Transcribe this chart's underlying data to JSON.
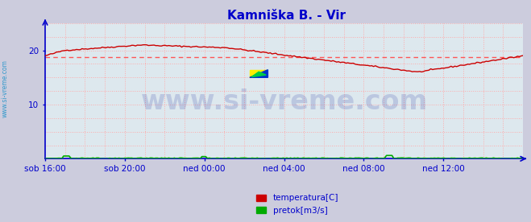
{
  "title": "Kamniška B. - Vir",
  "title_color": "#0000cc",
  "title_fontsize": 11,
  "bg_color": "#ccccdd",
  "plot_bg_color": "#dde8ee",
  "x_labels": [
    "sob 16:00",
    "sob 20:00",
    "ned 00:00",
    "ned 04:00",
    "ned 08:00",
    "ned 12:00"
  ],
  "x_ticks_norm": [
    0.0,
    0.1667,
    0.3333,
    0.5,
    0.6667,
    0.8333
  ],
  "ylim": [
    0,
    25
  ],
  "yticks": [
    10,
    20
  ],
  "grid_color_h": "#ffaaaa",
  "grid_color_v": "#ffaaaa",
  "grid_style": ":",
  "axis_color": "#0000cc",
  "tick_color": "#0000cc",
  "temp_color": "#cc0000",
  "pretok_color": "#00aa00",
  "avg_line_color": "#ff5555",
  "avg_line_style": "--",
  "avg_value": 18.7,
  "watermark_text": "www.si-vreme.com",
  "watermark_color": "#3344aa",
  "watermark_alpha": 0.2,
  "watermark_fontsize": 24,
  "sidebar_text": "www.si-vreme.com",
  "sidebar_color": "#3399cc",
  "legend_labels": [
    "temperatura[C]",
    "pretok[m3/s]"
  ],
  "legend_colors": [
    "#cc0000",
    "#00aa00"
  ],
  "icon_yellow": "#ffee00",
  "icon_blue": "#0033cc",
  "icon_green": "#00cc00"
}
